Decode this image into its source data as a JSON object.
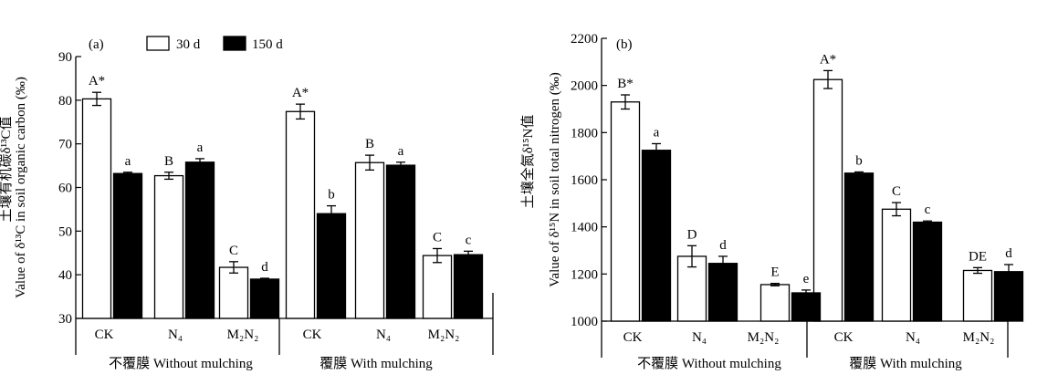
{
  "chart_data": [
    {
      "type": "bar",
      "panel_label": "(a)",
      "ylabel_cn": "土壤有机碳δ¹³C值",
      "ylabel_en": "Value of δ¹³C in soil organic carbon (‰)",
      "ylim": [
        30,
        90
      ],
      "yticks": [
        "30",
        "40",
        "50",
        "60",
        "70",
        "80",
        "90"
      ],
      "grid": false,
      "legend_position": "top",
      "groups": [
        "不覆膜 Without mulching",
        "覆膜 With mulching"
      ],
      "categories": [
        "CK",
        "N₄",
        "M₂N₂",
        "CK",
        "N₄",
        "M₂N₂"
      ],
      "series": [
        {
          "name": "30 d",
          "color": "#ffffff",
          "values": [
            80.3,
            62.7,
            41.7,
            77.4,
            65.7,
            44.4
          ],
          "errors": [
            1.5,
            0.8,
            1.3,
            1.7,
            1.7,
            1.6
          ],
          "labels": [
            "A*",
            "B",
            "C",
            "A*",
            "B",
            "C"
          ]
        },
        {
          "name": "150 d",
          "color": "#000000",
          "values": [
            63.2,
            65.8,
            39.0,
            54.0,
            65.1,
            44.6
          ],
          "errors": [
            0.3,
            0.8,
            0.2,
            1.8,
            0.7,
            0.8
          ],
          "labels": [
            "a",
            "a",
            "d",
            "b",
            "a",
            "c"
          ]
        }
      ]
    },
    {
      "type": "bar",
      "panel_label": "(b)",
      "ylabel_cn": "土壤全氮δ¹⁵N值",
      "ylabel_en": "Value of δ¹⁵N in soil total nitrogen (‰)",
      "ylim": [
        1000,
        2200
      ],
      "yticks": [
        "1000",
        "1200",
        "1400",
        "1600",
        "1800",
        "2000",
        "2200"
      ],
      "grid": false,
      "groups": [
        "不覆膜 Without mulching",
        "覆膜 With mulching"
      ],
      "categories": [
        "CK",
        "N₄",
        "M₂N₂",
        "CK",
        "N₄",
        "M₂N₂"
      ],
      "series": [
        {
          "name": "30 d",
          "color": "#ffffff",
          "values": [
            1930,
            1275,
            1155,
            2025,
            1475,
            1215
          ],
          "errors": [
            30,
            45,
            5,
            38,
            28,
            12
          ],
          "labels": [
            "B*",
            "D",
            "E",
            "A*",
            "C",
            "DE"
          ]
        },
        {
          "name": "150 d",
          "color": "#000000",
          "values": [
            1725,
            1245,
            1120,
            1628,
            1420,
            1210
          ],
          "errors": [
            28,
            30,
            12,
            5,
            5,
            30
          ],
          "labels": [
            "a",
            "d",
            "e",
            "b",
            "c",
            "d"
          ]
        }
      ]
    }
  ]
}
